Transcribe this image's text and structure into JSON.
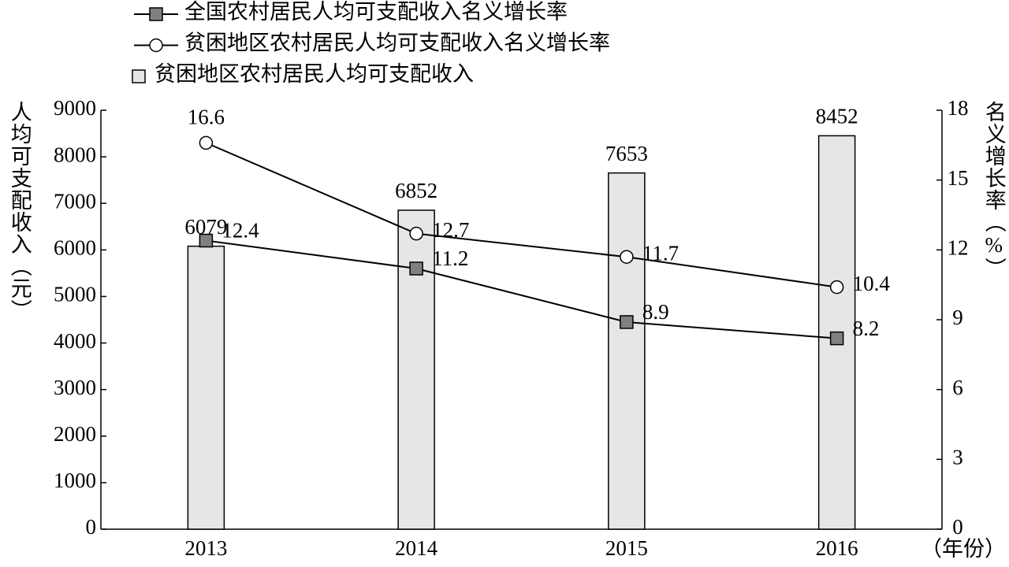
{
  "chart_data": {
    "type": "combo",
    "categories": [
      "2013",
      "2014",
      "2015",
      "2016"
    ],
    "xlabel": "（年份）",
    "ylabel": "人均可支配收入（元）",
    "y2label": "名义增长率（%）",
    "ylim": [
      0,
      9000
    ],
    "yticks": [
      0,
      1000,
      2000,
      3000,
      4000,
      5000,
      6000,
      7000,
      8000,
      9000
    ],
    "y2lim": [
      0,
      18
    ],
    "y2ticks": [
      0,
      3,
      6,
      9,
      12,
      15,
      18
    ],
    "series": [
      {
        "name": "全国农村居民人均可支配收入名义增长率",
        "type": "line",
        "axis": "y2",
        "marker": "square",
        "color": "#000000",
        "marker_color": "#808080",
        "values": [
          12.4,
          11.2,
          8.9,
          8.2
        ]
      },
      {
        "name": "贫困地区农村居民人均可支配收入名义增长率",
        "type": "line",
        "axis": "y2",
        "marker": "circle",
        "color": "#000000",
        "marker_color": "#ffffff",
        "values": [
          16.6,
          12.7,
          11.7,
          10.4
        ]
      },
      {
        "name": "贫困地区农村居民人均可支配收入",
        "type": "bar",
        "color": "#e6e6e6",
        "values": [
          6079,
          6852,
          7653,
          8452
        ]
      }
    ]
  }
}
